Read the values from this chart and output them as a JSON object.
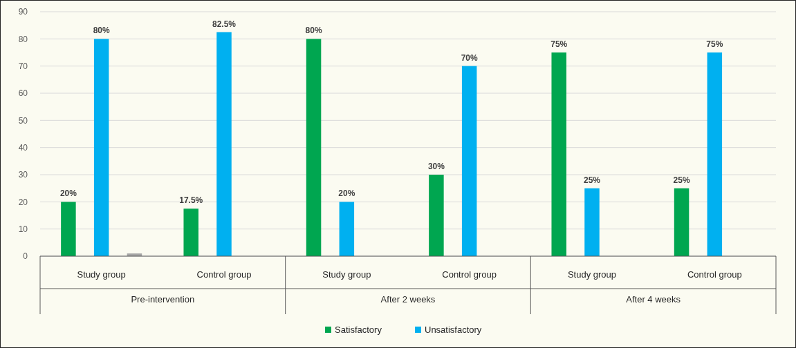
{
  "chart_data": {
    "type": "bar",
    "categories": [
      "Study group",
      "Control group",
      "Study group",
      "Control group",
      "Study group",
      "Control group"
    ],
    "series": [
      {
        "name": "Satisfactory",
        "color": "#00a650",
        "values": [
          20,
          17.5,
          80,
          30,
          75,
          25
        ],
        "value_labels": [
          "20%",
          "17.5%",
          "80%",
          "30%",
          "75%",
          "25%"
        ]
      },
      {
        "name": "Unsatisfactory",
        "color": "#00b0f0",
        "values": [
          80,
          82.5,
          20,
          70,
          25,
          75
        ],
        "value_labels": [
          "80%",
          "82.5%",
          "20%",
          "70%",
          "25%",
          "75%"
        ]
      },
      {
        "color": "#a6a6a6",
        "values": [
          1,
          null,
          null,
          null,
          null,
          null
        ]
      }
    ],
    "annotations": [
      "Pre-intervention",
      "After 2 weeks",
      "After 4 weeks"
    ],
    "ylim": [
      0,
      90
    ],
    "yticks": [
      0,
      10,
      20,
      30,
      40,
      50,
      60,
      70,
      80,
      90
    ],
    "grid": "y",
    "legend": "bottom"
  }
}
